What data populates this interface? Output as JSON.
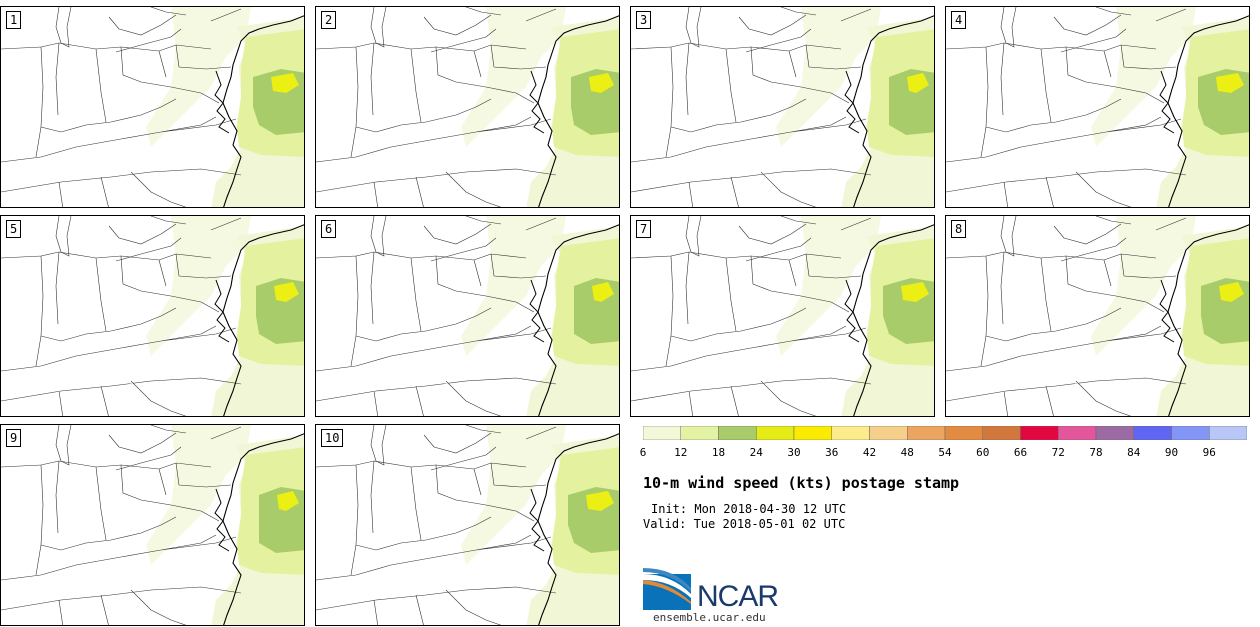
{
  "title": "10-m wind speed (kts) postage stamp",
  "init": "Init: Mon 2018-04-30 12 UTC",
  "valid": "Valid: Tue 2018-05-01 02 UTC",
  "website": "ensemble.ucar.edu",
  "logo_text": "NCAR",
  "members": [
    "1",
    "2",
    "3",
    "4",
    "5",
    "6",
    "7",
    "8",
    "9",
    "10"
  ],
  "colorbar": {
    "ticks": [
      "6",
      "12",
      "18",
      "24",
      "30",
      "36",
      "42",
      "48",
      "54",
      "60",
      "66",
      "72",
      "78",
      "84",
      "90",
      "96"
    ],
    "colors": [
      "#f4f8d8",
      "#e3f3a3",
      "#a9cc6b",
      "#e4eb15",
      "#fbeb00",
      "#fdec8b",
      "#f6cf8a",
      "#eba561",
      "#e38b43",
      "#d2783d",
      "#e3073f",
      "#e3569b",
      "#9c6ba4",
      "#6165f3",
      "#8396f6",
      "#b9c7f7"
    ]
  },
  "legend_levels": {
    "light": "#f1f7d6",
    "low": "#e4f2a0",
    "mid": "#a9cc6b",
    "high": "#ecef13"
  }
}
